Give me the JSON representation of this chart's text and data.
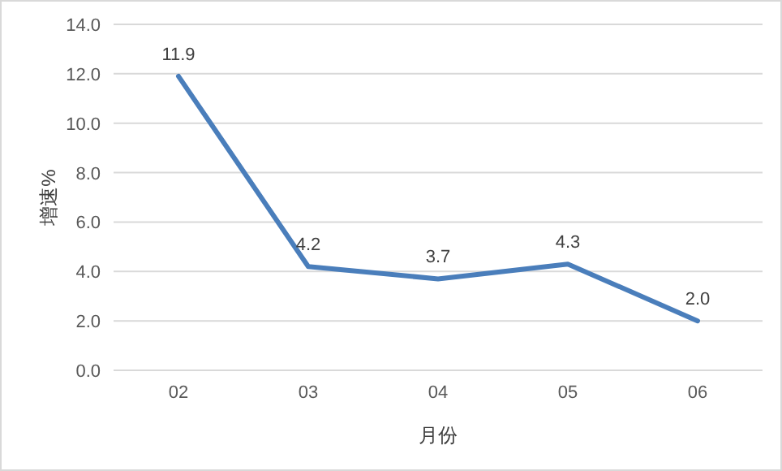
{
  "chart_data": {
    "type": "line",
    "xlabel": "月份",
    "ylabel": "增速%",
    "categories": [
      "02",
      "03",
      "04",
      "05",
      "06"
    ],
    "values": [
      11.9,
      4.2,
      3.7,
      4.3,
      2.0
    ],
    "value_labels": [
      "11.9",
      "4.2",
      "3.7",
      "4.3",
      "2.0"
    ],
    "color": "#4a7ebb",
    "ylim": [
      0,
      14
    ],
    "yticks": [
      {
        "value": 0,
        "label": "0.0"
      },
      {
        "value": 2,
        "label": "2.0"
      },
      {
        "value": 4,
        "label": "4.0"
      },
      {
        "value": 6,
        "label": "6.0"
      },
      {
        "value": 8,
        "label": "8.0"
      },
      {
        "value": 10,
        "label": "10.0"
      },
      {
        "value": 12,
        "label": "12.0"
      },
      {
        "value": 14,
        "label": "14.0"
      }
    ],
    "grid": "y"
  }
}
